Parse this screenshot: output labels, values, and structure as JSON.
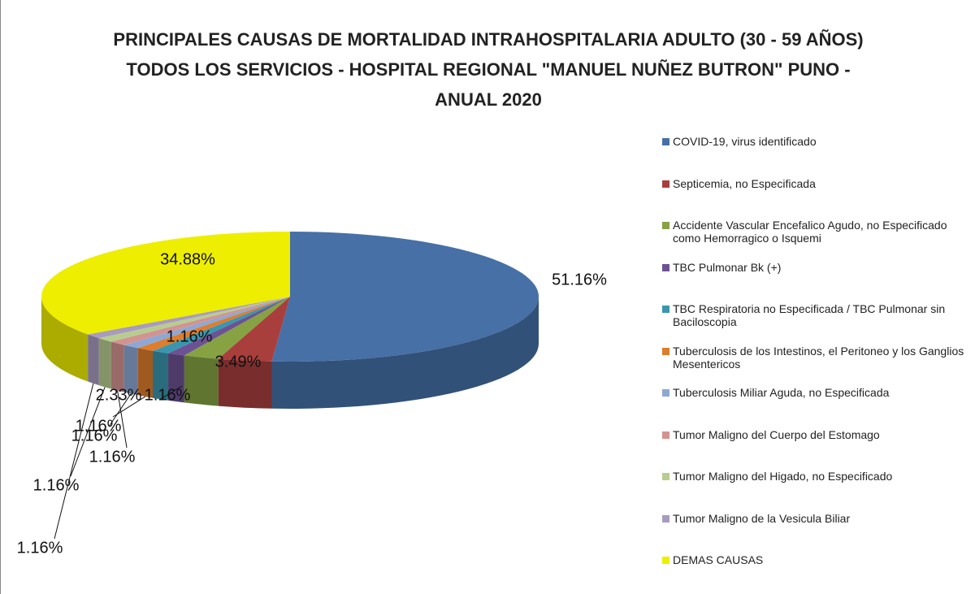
{
  "chart_data": {
    "type": "pie3d",
    "title": "PRINCIPALES CAUSAS DE MORTALIDAD INTRAHOSPITALARIA ADULTO (30 - 59 AÑOS) TODOS LOS SERVICIOS - HOSPITAL REGIONAL \"MANUEL NUÑEZ BUTRON\" PUNO - ANUAL 2020",
    "categories": [
      "COVID-19, virus identificado",
      "Septicemia, no Especificada",
      "Accidente Vascular Encefalico Agudo, no Especificado como Hemorragico o  Isquemi",
      "TBC Pulmonar  Bk (+)",
      "TBC Respiratoria no Especificada / TBC Pulmonar sin Baciloscopia",
      "Tuberculosis de los Intestinos, el Peritoneo y los Ganglios Mesentericos",
      "Tuberculosis Miliar Aguda, no Especificada",
      "Tumor Maligno del Cuerpo del Estomago",
      "Tumor Maligno del Higado, no Especificado",
      "Tumor Maligno de la Vesicula Biliar",
      "DEMAS CAUSAS"
    ],
    "values": [
      51.16,
      3.49,
      2.33,
      1.16,
      1.16,
      1.16,
      1.16,
      1.16,
      1.16,
      1.16,
      34.88
    ],
    "value_labels": [
      "51.16%",
      "3.49%",
      "2.33%",
      "1.16%",
      "1.16%",
      "1.16%",
      "1.16%",
      "1.16%",
      "1.16%",
      "1.16%",
      "34.88%"
    ],
    "colors": [
      "#4670a6",
      "#a83f3d",
      "#86a243",
      "#6c5293",
      "#3a96ae",
      "#de7d2c",
      "#8ea8d4",
      "#d39390",
      "#b7cd90",
      "#a89bbf",
      "#eeee00"
    ],
    "legend": "right"
  }
}
